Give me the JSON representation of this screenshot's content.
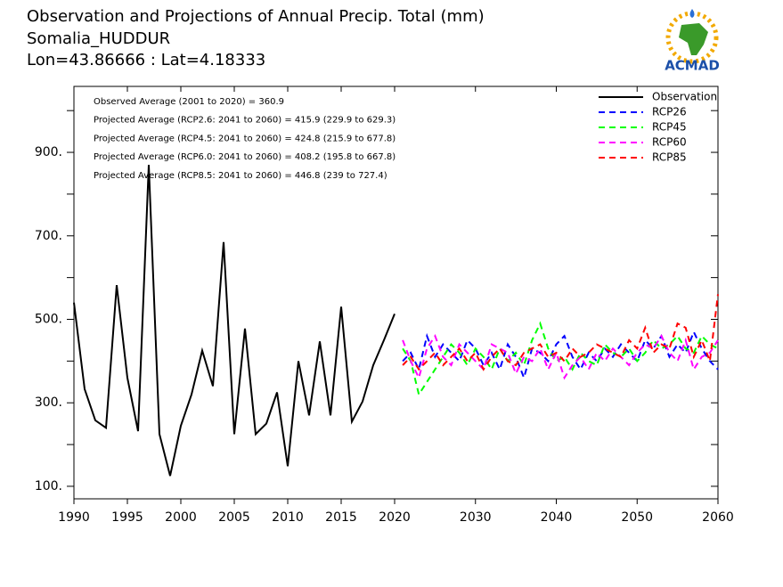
{
  "chart_data": {
    "type": "line",
    "title": "Observation and Projections of Annual Precip. Total (mm)",
    "subtitle": "Somalia_HUDDUR",
    "location": "Lon=43.86666 : Lat=4.18333",
    "logo_text": "ACMAD",
    "annotations": [
      "Observed Average (2001 to 2020) = 360.9",
      "Projected Average (RCP2.6: 2041 to 2060) = 415.9 (229.9 to 629.3)",
      "Projected Average (RCP4.5: 2041 to 2060) = 424.8 (215.9 to 677.8)",
      "Projected Average (RCP6.0: 2041 to 2060) = 408.2 (195.8 to 667.8)",
      "Projected Average (RCP8.5: 2041 to 2060) = 446.8 (239 to 727.4)"
    ],
    "xlim": [
      1990,
      2060
    ],
    "xticks": [
      1990,
      1995,
      2000,
      2005,
      2010,
      2015,
      2020,
      2030,
      2040,
      2050,
      2060
    ],
    "ylim": [
      70,
      1058
    ],
    "yticks": [
      {
        "value": 100,
        "label": "100."
      },
      {
        "value": 300,
        "label": "300."
      },
      {
        "value": 500,
        "label": "500."
      },
      {
        "value": 700,
        "label": "700."
      },
      {
        "value": 900,
        "label": "900."
      }
    ],
    "yminor": [
      200,
      400,
      600,
      800,
      1000
    ],
    "legend": "top-right",
    "series": [
      {
        "name": "Observation",
        "color": "#000000",
        "dashed": false,
        "x": [
          1990,
          1991,
          1992,
          1993,
          1994,
          1995,
          1996,
          1997,
          1998,
          1999,
          2000,
          2001,
          2002,
          2003,
          2004,
          2005,
          2006,
          2007,
          2008,
          2009,
          2010,
          2011,
          2012,
          2013,
          2014,
          2015,
          2016,
          2017,
          2018,
          2019,
          2020
        ],
        "values": [
          540,
          333,
          258,
          240,
          582,
          360,
          232,
          870,
          225,
          125,
          245,
          320,
          425,
          340,
          685,
          225,
          478,
          225,
          250,
          325,
          148,
          400,
          270,
          447,
          270,
          530,
          255,
          303,
          390,
          450,
          513
        ]
      },
      {
        "name": "RCP26",
        "color": "#0000ff",
        "dashed": true,
        "x": [
          2021,
          2022,
          2023,
          2024,
          2025,
          2026,
          2027,
          2028,
          2029,
          2030,
          2031,
          2032,
          2033,
          2034,
          2035,
          2036,
          2037,
          2038,
          2039,
          2040,
          2041,
          2042,
          2043,
          2044,
          2045,
          2046,
          2047,
          2048,
          2049,
          2050,
          2051,
          2052,
          2053,
          2054,
          2055,
          2056,
          2057,
          2058,
          2059,
          2060
        ],
        "values": [
          400,
          420,
          380,
          460,
          410,
          440,
          420,
          400,
          450,
          430,
          390,
          420,
          380,
          440,
          410,
          360,
          430,
          420,
          400,
          440,
          460,
          410,
          380,
          420,
          400,
          430,
          410,
          440,
          420,
          400,
          450,
          430,
          460,
          410,
          440,
          420,
          470,
          430,
          400,
          380
        ]
      },
      {
        "name": "RCP45",
        "color": "#00ff00",
        "dashed": true,
        "x": [
          2021,
          2022,
          2023,
          2024,
          2025,
          2026,
          2027,
          2028,
          2029,
          2030,
          2031,
          2032,
          2033,
          2034,
          2035,
          2036,
          2037,
          2038,
          2039,
          2040,
          2041,
          2042,
          2043,
          2044,
          2045,
          2046,
          2047,
          2048,
          2049,
          2050,
          2051,
          2052,
          2053,
          2054,
          2055,
          2056,
          2057,
          2058,
          2059,
          2060
        ],
        "values": [
          430,
          400,
          320,
          350,
          380,
          410,
          440,
          420,
          390,
          430,
          410,
          380,
          430,
          400,
          420,
          390,
          450,
          490,
          430,
          400,
          410,
          380,
          420,
          400,
          390,
          440,
          420,
          410,
          430,
          400,
          420,
          450,
          430,
          440,
          460,
          430,
          420,
          460,
          440,
          430
        ]
      },
      {
        "name": "RCP60",
        "color": "#ff00ff",
        "dashed": true,
        "x": [
          2021,
          2022,
          2023,
          2024,
          2025,
          2026,
          2027,
          2028,
          2029,
          2030,
          2031,
          2032,
          2033,
          2034,
          2035,
          2036,
          2037,
          2038,
          2039,
          2040,
          2041,
          2042,
          2043,
          2044,
          2045,
          2046,
          2047,
          2048,
          2049,
          2050,
          2051,
          2052,
          2053,
          2054,
          2055,
          2056,
          2057,
          2058,
          2059,
          2060
        ],
        "values": [
          450,
          400,
          360,
          430,
          460,
          410,
          390,
          440,
          420,
          400,
          380,
          440,
          430,
          420,
          370,
          410,
          400,
          430,
          380,
          420,
          360,
          390,
          410,
          380,
          420,
          400,
          430,
          410,
          390,
          420,
          440,
          430,
          460,
          420,
          400,
          450,
          380,
          410,
          420,
          450
        ]
      },
      {
        "name": "RCP85",
        "color": "#ff0000",
        "dashed": true,
        "x": [
          2021,
          2022,
          2023,
          2024,
          2025,
          2026,
          2027,
          2028,
          2029,
          2030,
          2031,
          2032,
          2033,
          2034,
          2035,
          2036,
          2037,
          2038,
          2039,
          2040,
          2041,
          2042,
          2043,
          2044,
          2045,
          2046,
          2047,
          2048,
          2049,
          2050,
          2051,
          2052,
          2053,
          2054,
          2055,
          2056,
          2057,
          2058,
          2059,
          2060
        ],
        "values": [
          390,
          410,
          380,
          400,
          420,
          390,
          410,
          430,
          400,
          420,
          380,
          410,
          430,
          400,
          390,
          420,
          430,
          440,
          410,
          420,
          400,
          430,
          410,
          420,
          440,
          430,
          420,
          410,
          450,
          430,
          480,
          420,
          440,
          430,
          490,
          480,
          410,
          450,
          400,
          560
        ]
      }
    ]
  }
}
